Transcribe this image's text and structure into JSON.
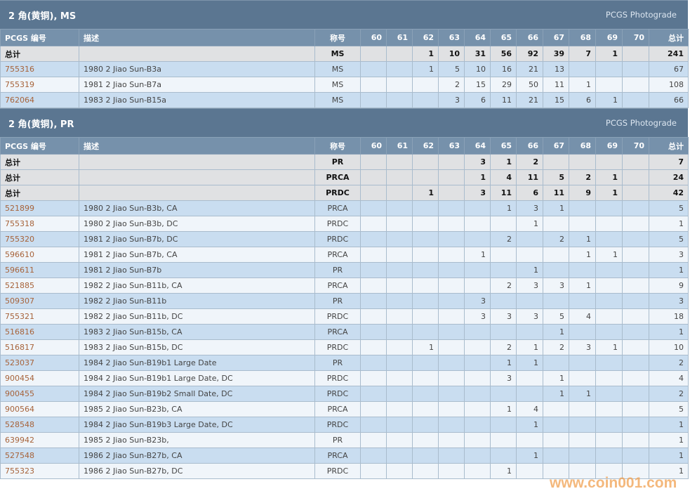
{
  "columns": [
    "PCGS 编号",
    "描述",
    "称号",
    "60",
    "61",
    "62",
    "63",
    "64",
    "65",
    "66",
    "67",
    "68",
    "69",
    "70",
    "总计"
  ],
  "colors": {
    "section_header": "#5b7691",
    "column_header": "#7691ab",
    "total_row": "#e0e1e3",
    "row_blue": "#c9ddf0",
    "row_light": "#f0f5fa",
    "link": "#a7633a",
    "watermark": "#f0a050"
  },
  "sections": [
    {
      "title": "2 角(黄铜), MS",
      "photograde": "PCGS Photograde",
      "totals": [
        {
          "label": "总计",
          "designation": "MS",
          "grades": [
            "",
            "",
            "1",
            "10",
            "31",
            "56",
            "92",
            "39",
            "7",
            "1",
            ""
          ],
          "total": "241"
        }
      ],
      "rows": [
        {
          "id": "755316",
          "desc": "1980 2 Jiao Sun-B3a",
          "designation": "MS",
          "grades": [
            "",
            "",
            "1",
            "5",
            "10",
            "16",
            "21",
            "13",
            "",
            "",
            ""
          ],
          "total": "67"
        },
        {
          "id": "755319",
          "desc": "1981 2 Jiao Sun-B7a",
          "designation": "MS",
          "grades": [
            "",
            "",
            "",
            "2",
            "15",
            "29",
            "50",
            "11",
            "1",
            "",
            ""
          ],
          "total": "108"
        },
        {
          "id": "762064",
          "desc": "1983 2 Jiao Sun-B15a",
          "designation": "MS",
          "grades": [
            "",
            "",
            "",
            "3",
            "6",
            "11",
            "21",
            "15",
            "6",
            "1",
            ""
          ],
          "total": "66"
        }
      ]
    },
    {
      "title": "2 角(黄铜), PR",
      "photograde": "PCGS Photograde",
      "totals": [
        {
          "label": "总计",
          "designation": "PR",
          "grades": [
            "",
            "",
            "",
            "",
            "3",
            "1",
            "2",
            "",
            "",
            "",
            ""
          ],
          "total": "7"
        },
        {
          "label": "总计",
          "designation": "PRCA",
          "grades": [
            "",
            "",
            "",
            "",
            "1",
            "4",
            "11",
            "5",
            "2",
            "1",
            ""
          ],
          "total": "24"
        },
        {
          "label": "总计",
          "designation": "PRDC",
          "grades": [
            "",
            "",
            "1",
            "",
            "3",
            "11",
            "6",
            "11",
            "9",
            "1",
            ""
          ],
          "total": "42"
        }
      ],
      "rows": [
        {
          "id": "521899",
          "desc": "1980 2 Jiao Sun-B3b, CA",
          "designation": "PRCA",
          "grades": [
            "",
            "",
            "",
            "",
            "",
            "1",
            "3",
            "1",
            "",
            "",
            ""
          ],
          "total": "5"
        },
        {
          "id": "755318",
          "desc": "1980 2 Jiao Sun-B3b, DC",
          "designation": "PRDC",
          "grades": [
            "",
            "",
            "",
            "",
            "",
            "",
            "1",
            "",
            "",
            "",
            ""
          ],
          "total": "1"
        },
        {
          "id": "755320",
          "desc": "1981 2 Jiao Sun-B7b, DC",
          "designation": "PRDC",
          "grades": [
            "",
            "",
            "",
            "",
            "",
            "2",
            "",
            "2",
            "1",
            "",
            ""
          ],
          "total": "5"
        },
        {
          "id": "596610",
          "desc": "1981 2 Jiao Sun-B7b, CA",
          "designation": "PRCA",
          "grades": [
            "",
            "",
            "",
            "",
            "1",
            "",
            "",
            "",
            "1",
            "1",
            ""
          ],
          "total": "3"
        },
        {
          "id": "596611",
          "desc": "1981 2 Jiao Sun-B7b",
          "designation": "PR",
          "grades": [
            "",
            "",
            "",
            "",
            "",
            "",
            "1",
            "",
            "",
            "",
            ""
          ],
          "total": "1"
        },
        {
          "id": "521885",
          "desc": "1982 2 Jiao Sun-B11b, CA",
          "designation": "PRCA",
          "grades": [
            "",
            "",
            "",
            "",
            "",
            "2",
            "3",
            "3",
            "1",
            "",
            ""
          ],
          "total": "9"
        },
        {
          "id": "509307",
          "desc": "1982 2 Jiao Sun-B11b",
          "designation": "PR",
          "grades": [
            "",
            "",
            "",
            "",
            "3",
            "",
            "",
            "",
            "",
            "",
            ""
          ],
          "total": "3"
        },
        {
          "id": "755321",
          "desc": "1982 2 Jiao Sun-B11b, DC",
          "designation": "PRDC",
          "grades": [
            "",
            "",
            "",
            "",
            "3",
            "3",
            "3",
            "5",
            "4",
            "",
            ""
          ],
          "total": "18"
        },
        {
          "id": "516816",
          "desc": "1983 2 Jiao Sun-B15b, CA",
          "designation": "PRCA",
          "grades": [
            "",
            "",
            "",
            "",
            "",
            "",
            "",
            "1",
            "",
            "",
            ""
          ],
          "total": "1"
        },
        {
          "id": "516817",
          "desc": "1983 2 Jiao Sun-B15b, DC",
          "designation": "PRDC",
          "grades": [
            "",
            "",
            "1",
            "",
            "",
            "2",
            "1",
            "2",
            "3",
            "1",
            ""
          ],
          "total": "10"
        },
        {
          "id": "523037",
          "desc": "1984 2 Jiao Sun-B19b1 Large Date",
          "designation": "PR",
          "grades": [
            "",
            "",
            "",
            "",
            "",
            "1",
            "1",
            "",
            "",
            "",
            ""
          ],
          "total": "2"
        },
        {
          "id": "900454",
          "desc": "1984 2 Jiao Sun-B19b1 Large Date, DC",
          "designation": "PRDC",
          "grades": [
            "",
            "",
            "",
            "",
            "",
            "3",
            "",
            "1",
            "",
            "",
            ""
          ],
          "total": "4"
        },
        {
          "id": "900455",
          "desc": "1984 2 Jiao Sun-B19b2 Small Date, DC",
          "designation": "PRDC",
          "grades": [
            "",
            "",
            "",
            "",
            "",
            "",
            "",
            "1",
            "1",
            "",
            ""
          ],
          "total": "2"
        },
        {
          "id": "900564",
          "desc": "1985 2 Jiao Sun-B23b, CA",
          "designation": "PRCA",
          "grades": [
            "",
            "",
            "",
            "",
            "",
            "1",
            "4",
            "",
            "",
            "",
            ""
          ],
          "total": "5"
        },
        {
          "id": "528548",
          "desc": "1984 2 Jiao Sun-B19b3 Large Date, DC",
          "designation": "PRDC",
          "grades": [
            "",
            "",
            "",
            "",
            "",
            "",
            "1",
            "",
            "",
            "",
            ""
          ],
          "total": "1"
        },
        {
          "id": "639942",
          "desc": "1985 2 Jiao Sun-B23b,",
          "designation": "PR",
          "grades": [
            "",
            "",
            "",
            "",
            "",
            "",
            "",
            "",
            "",
            "",
            ""
          ],
          "total": "1"
        },
        {
          "id": "527548",
          "desc": "1986 2 Jiao Sun-B27b, CA",
          "designation": "PRCA",
          "grades": [
            "",
            "",
            "",
            "",
            "",
            "",
            "1",
            "",
            "",
            "",
            ""
          ],
          "total": "1"
        },
        {
          "id": "755323",
          "desc": "1986 2 Jiao Sun-B27b, DC",
          "designation": "PRDC",
          "grades": [
            "",
            "",
            "",
            "",
            "",
            "1",
            "",
            "",
            "",
            "",
            ""
          ],
          "total": "1"
        }
      ]
    }
  ],
  "watermark": "www.coin001.com"
}
